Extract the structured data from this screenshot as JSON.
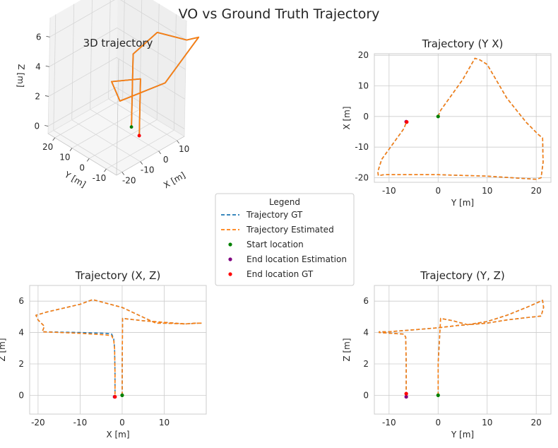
{
  "suptitle": "VO vs Ground Truth Trajectory",
  "colors": {
    "gt": "#1f77b4",
    "est": "#ff7f0e",
    "start": "#008000",
    "end_est": "#800080",
    "end_gt": "#ff0000",
    "grid": "#cccccc",
    "frame": "#cccccc"
  },
  "legend": {
    "title": "Legend",
    "items": [
      {
        "label": "Trajectory GT",
        "kind": "line",
        "color": "#1f77b4"
      },
      {
        "label": "Trajectory Estimated",
        "kind": "line",
        "color": "#ff7f0e"
      },
      {
        "label": "Start location",
        "kind": "dot",
        "color": "#008000"
      },
      {
        "label": "End location Estimation",
        "kind": "dot",
        "color": "#800080"
      },
      {
        "label": "End location GT",
        "kind": "dot",
        "color": "#ff0000"
      }
    ]
  },
  "chart_data": [
    {
      "type": "line",
      "panel": "3d",
      "title": "3D trajectory",
      "xlabel": "X [m]",
      "ylabel": "Y [m]",
      "zlabel": "Z [m]",
      "x_ticks": [
        -20,
        -10,
        0,
        10
      ],
      "y_ticks": [
        -10,
        0,
        10,
        20
      ],
      "z_ticks": [
        0,
        2,
        4,
        6
      ],
      "grid": true,
      "series": [
        {
          "name": "Trajectory GT",
          "style": "solid",
          "points": [
            [
              0,
              0,
              0
            ],
            [
              0.2,
              0,
              4.9
            ],
            [
              19,
              6,
              4.6
            ],
            [
              21,
              -9,
              5
            ],
            [
              18,
              -19,
              6.1
            ],
            [
              0,
              -19,
              4.3
            ],
            [
              -19,
              -13,
              4
            ],
            [
              -20,
              -9,
              5.1
            ],
            [
              -1.6,
              -6.4,
              3.8
            ],
            [
              -1.8,
              -6.5,
              0
            ]
          ]
        },
        {
          "name": "Trajectory Estimated",
          "style": "solid",
          "points": [
            [
              0,
              0,
              0
            ],
            [
              0.2,
              0,
              4.9
            ],
            [
              19,
              6,
              4.6
            ],
            [
              21,
              -9,
              5
            ],
            [
              18,
              -19,
              6.1
            ],
            [
              0,
              -19,
              4.3
            ],
            [
              -19,
              -13,
              4
            ],
            [
              -20,
              -9,
              5.1
            ],
            [
              -1.6,
              -6.4,
              3.8
            ],
            [
              -1.8,
              -6.5,
              0
            ]
          ]
        }
      ],
      "markers": [
        {
          "name": "Start location",
          "point": [
            0,
            0,
            0
          ]
        },
        {
          "name": "End location Estimation",
          "point": [
            -1.8,
            -6.5,
            0
          ]
        },
        {
          "name": "End location GT",
          "point": [
            -1.8,
            -6.5,
            0
          ]
        }
      ]
    },
    {
      "type": "line",
      "panel": "yx",
      "title": "Trajectory (Y X)",
      "xlabel": "Y [m]",
      "ylabel": "X [m]",
      "xlim": [
        -13,
        23
      ],
      "ylim": [
        -21.5,
        20.5
      ],
      "x_ticks": [
        -10,
        0,
        10,
        20
      ],
      "y_ticks": [
        -20,
        -10,
        0,
        10,
        20
      ],
      "grid": true,
      "series": [
        {
          "name": "Trajectory GT",
          "style": "dashed",
          "x": [
            0,
            0.5,
            5,
            7.5,
            8.5,
            10,
            14,
            18,
            20.5,
            21.3,
            21.4,
            21,
            20,
            10,
            0,
            -6,
            -11,
            -12.2,
            -12.3,
            -11.5,
            -7,
            -6.5
          ],
          "y": [
            0,
            2,
            12,
            19,
            18.5,
            17,
            6,
            -2,
            -6,
            -7,
            -15,
            -20,
            -20.5,
            -19.5,
            -19,
            -19,
            -19,
            -19.3,
            -18,
            -14,
            -4,
            -2
          ]
        },
        {
          "name": "Trajectory Estimated",
          "style": "dashed",
          "x": [
            0,
            0.5,
            5,
            7.5,
            8.5,
            10,
            14,
            18,
            20.5,
            21.3,
            21.4,
            21,
            20,
            10,
            0,
            -6,
            -11,
            -12.2,
            -12.3,
            -11.5,
            -7,
            -6.5
          ],
          "y": [
            0,
            2,
            12,
            19,
            18.5,
            17,
            6,
            -2,
            -6,
            -7,
            -15,
            -20,
            -20.5,
            -19.5,
            -19,
            -19,
            -19,
            -19.3,
            -18,
            -14,
            -4,
            -2
          ]
        }
      ],
      "markers": [
        {
          "name": "Start location",
          "x": 0,
          "y": 0
        },
        {
          "name": "End location Estimation",
          "x": -6.5,
          "y": -1.7
        },
        {
          "name": "End location GT",
          "x": -6.4,
          "y": -1.8
        }
      ]
    },
    {
      "type": "line",
      "panel": "xz",
      "title": "Trajectory (X, Z)",
      "xlabel": "X [m]",
      "ylabel": "Z [m]",
      "xlim": [
        -22,
        20
      ],
      "ylim": [
        -1.2,
        7
      ],
      "x_ticks": [
        -20,
        -10,
        0,
        10
      ],
      "y_ticks": [
        0,
        2,
        4,
        6
      ],
      "grid": true,
      "series": [
        {
          "name": "Trajectory GT",
          "style": "dashed",
          "x": [
            0,
            0,
            0.1,
            5,
            10,
            15,
            17.5,
            18.5,
            19,
            18.2,
            15,
            10,
            8,
            0,
            -7,
            -10,
            -18,
            -20.5,
            -20,
            -18.5,
            -19,
            -10,
            -4,
            -2.5,
            -2,
            -1.8,
            -1.7,
            -1.7
          ],
          "y": [
            0,
            2,
            4.9,
            4.75,
            4.65,
            4.55,
            4.6,
            4.6,
            4.6,
            4.6,
            4.55,
            4.6,
            4.6,
            5.6,
            6.1,
            5.8,
            5.3,
            5.1,
            4.8,
            4.4,
            4.05,
            4.0,
            3.95,
            3.9,
            3.6,
            3,
            1.5,
            0
          ]
        },
        {
          "name": "Trajectory Estimated",
          "style": "dashed",
          "x": [
            0,
            0,
            0.1,
            5,
            10,
            15,
            17.5,
            18.5,
            19,
            18.2,
            15,
            10,
            8,
            0,
            -7,
            -10,
            -18,
            -20.5,
            -20,
            -18.5,
            -19,
            -10,
            -4,
            -2.5,
            -2,
            -1.8,
            -1.7,
            -1.7
          ],
          "y": [
            0,
            2,
            4.9,
            4.75,
            4.65,
            4.55,
            4.6,
            4.6,
            4.6,
            4.6,
            4.55,
            4.6,
            4.6,
            5.6,
            6.1,
            5.8,
            5.3,
            5.1,
            4.8,
            4.4,
            4.05,
            3.95,
            3.85,
            3.8,
            3.5,
            3,
            1.5,
            0
          ]
        }
      ],
      "markers": [
        {
          "name": "Start location",
          "x": 0,
          "y": 0
        },
        {
          "name": "End location Estimation",
          "x": -1.8,
          "y": -0.1
        },
        {
          "name": "End location GT",
          "x": -1.7,
          "y": -0.1
        }
      ]
    },
    {
      "type": "line",
      "panel": "yz",
      "title": "Trajectory (Y, Z)",
      "xlabel": "Y [m]",
      "ylabel": "Z [m]",
      "xlim": [
        -13,
        23
      ],
      "ylim": [
        -1.2,
        7
      ],
      "x_ticks": [
        -10,
        0,
        10,
        20
      ],
      "y_ticks": [
        0,
        2,
        4,
        6
      ],
      "grid": true,
      "series": [
        {
          "name": "Trajectory GT",
          "style": "dashed",
          "x": [
            0,
            0,
            0.5,
            3,
            6,
            10,
            14,
            18,
            21,
            21.5,
            21.3,
            18,
            14,
            10,
            6,
            4,
            0,
            -6,
            -10,
            -12,
            -12,
            -7,
            -6.6,
            -6.5,
            -6.5
          ],
          "y": [
            0,
            2,
            4.9,
            4.75,
            4.5,
            4.6,
            4.8,
            4.95,
            5.05,
            5.6,
            6.05,
            5.6,
            5.1,
            4.7,
            4.5,
            4.45,
            4.3,
            4.15,
            4.05,
            4.05,
            4.0,
            3.9,
            3.7,
            2,
            0
          ]
        },
        {
          "name": "Trajectory Estimated",
          "style": "dashed",
          "x": [
            0,
            0,
            0.5,
            3,
            6,
            10,
            14,
            18,
            21,
            21.5,
            21.3,
            18,
            14,
            10,
            6,
            4,
            0,
            -6,
            -10,
            -12,
            -12,
            -7,
            -6.6,
            -6.5,
            -6.5
          ],
          "y": [
            0,
            2,
            4.9,
            4.75,
            4.5,
            4.6,
            4.8,
            4.95,
            5.05,
            5.6,
            6.05,
            5.6,
            5.1,
            4.7,
            4.5,
            4.45,
            4.3,
            4.15,
            4.05,
            4.05,
            4.0,
            3.9,
            3.7,
            2,
            0
          ]
        }
      ],
      "markers": [
        {
          "name": "Start location",
          "x": 0,
          "y": 0
        },
        {
          "name": "End location Estimation",
          "x": -6.5,
          "y": -0.1
        },
        {
          "name": "End location GT",
          "x": -6.5,
          "y": 0.1
        }
      ]
    }
  ]
}
